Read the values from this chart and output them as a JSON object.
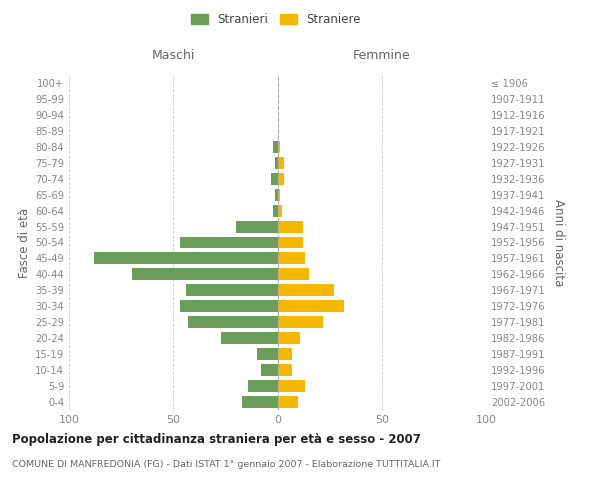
{
  "age_groups": [
    "0-4",
    "5-9",
    "10-14",
    "15-19",
    "20-24",
    "25-29",
    "30-34",
    "35-39",
    "40-44",
    "45-49",
    "50-54",
    "55-59",
    "60-64",
    "65-69",
    "70-74",
    "75-79",
    "80-84",
    "85-89",
    "90-94",
    "95-99",
    "100+"
  ],
  "birth_years": [
    "2002-2006",
    "1997-2001",
    "1992-1996",
    "1987-1991",
    "1982-1986",
    "1977-1981",
    "1972-1976",
    "1967-1971",
    "1962-1966",
    "1957-1961",
    "1952-1956",
    "1947-1951",
    "1942-1946",
    "1937-1941",
    "1932-1936",
    "1927-1931",
    "1922-1926",
    "1917-1921",
    "1912-1916",
    "1907-1911",
    "≤ 1906"
  ],
  "maschi": [
    17,
    14,
    8,
    10,
    27,
    43,
    47,
    44,
    70,
    88,
    47,
    20,
    2,
    1,
    3,
    1,
    2,
    0,
    0,
    0,
    0
  ],
  "femmine": [
    10,
    13,
    7,
    7,
    11,
    22,
    32,
    27,
    15,
    13,
    12,
    12,
    2,
    1,
    3,
    3,
    1,
    0,
    0,
    0,
    0
  ],
  "color_maschi": "#6a9e5a",
  "color_femmine": "#f5b800",
  "title": "Popolazione per cittadinanza straniera per età e sesso - 2007",
  "subtitle": "COMUNE DI MANFREDONIA (FG) - Dati ISTAT 1° gennaio 2007 - Elaborazione TUTTITALIA.IT",
  "header_left": "Maschi",
  "header_right": "Femmine",
  "ylabel_left": "Fasce di età",
  "ylabel_right": "Anni di nascita",
  "legend_maschi": "Stranieri",
  "legend_femmine": "Straniere",
  "xlim": 100,
  "background_color": "#ffffff",
  "grid_color": "#cccccc",
  "label_color": "#888888",
  "header_color": "#666666",
  "title_color": "#222222",
  "subtitle_color": "#666666"
}
